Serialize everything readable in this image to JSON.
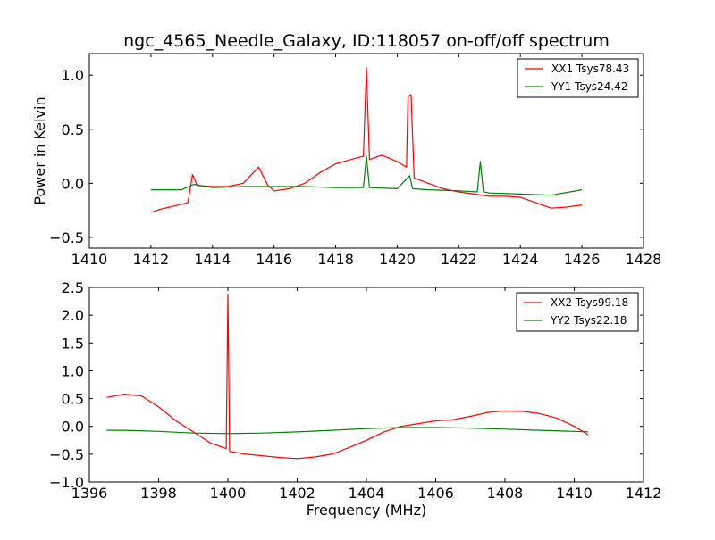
{
  "figure": {
    "title": "ngc_4565_Needle_Galaxy, ID:118057 on-off/off spectrum"
  },
  "chart_data": [
    {
      "type": "line",
      "title": "ngc_4565_Needle_Galaxy, ID:118057 on-off/off spectrum",
      "xlabel": "",
      "ylabel": "Power in Kelvin",
      "xlim": [
        1410,
        1428
      ],
      "ylim": [
        -0.6,
        1.2
      ],
      "xticks": [
        1410,
        1412,
        1414,
        1416,
        1418,
        1420,
        1422,
        1424,
        1426,
        1428
      ],
      "xtick_labels": [
        "1410",
        "1412",
        "1414",
        "1416",
        "1418",
        "1420",
        "1422",
        "1424",
        "1426",
        "1428"
      ],
      "yticks": [
        -0.5,
        0.0,
        0.5,
        1.0
      ],
      "ytick_labels": [
        "−0.5",
        "0.0",
        "0.5",
        "1.0"
      ],
      "grid": false,
      "legend_position": "top-right",
      "series": [
        {
          "name": "XX1 Tsys78.43",
          "color": "#ff0000",
          "x": [
            1412.0,
            1412.3,
            1412.6,
            1412.9,
            1413.2,
            1413.35,
            1413.5,
            1414.0,
            1414.5,
            1415.0,
            1415.5,
            1415.8,
            1416.0,
            1416.5,
            1417.0,
            1417.5,
            1418.0,
            1418.5,
            1418.9,
            1419.0,
            1419.1,
            1419.5,
            1420.0,
            1420.3,
            1420.35,
            1420.45,
            1420.55,
            1421.0,
            1421.5,
            1422.0,
            1422.5,
            1423.0,
            1423.5,
            1424.0,
            1424.5,
            1425.0,
            1425.5,
            1426.0
          ],
          "y": [
            -0.27,
            -0.24,
            -0.22,
            -0.2,
            -0.18,
            0.08,
            -0.02,
            -0.03,
            -0.03,
            0.0,
            0.15,
            -0.02,
            -0.07,
            -0.05,
            0.0,
            0.1,
            0.18,
            0.22,
            0.25,
            1.07,
            0.22,
            0.26,
            0.2,
            0.15,
            0.8,
            0.82,
            0.05,
            0.0,
            -0.05,
            -0.08,
            -0.1,
            -0.12,
            -0.12,
            -0.13,
            -0.18,
            -0.23,
            -0.22,
            -0.2
          ]
        },
        {
          "name": "YY1 Tsys24.42",
          "color": "#008000",
          "x": [
            1412.0,
            1413.0,
            1413.4,
            1414.0,
            1415.0,
            1416.0,
            1417.0,
            1418.0,
            1418.9,
            1419.0,
            1419.1,
            1420.0,
            1420.4,
            1420.5,
            1421.0,
            1422.0,
            1422.6,
            1422.7,
            1422.8,
            1423.0,
            1424.0,
            1425.0,
            1426.0
          ],
          "y": [
            -0.06,
            -0.06,
            -0.01,
            -0.04,
            -0.03,
            -0.03,
            -0.03,
            -0.04,
            -0.04,
            0.25,
            -0.04,
            -0.05,
            0.07,
            -0.05,
            -0.06,
            -0.07,
            -0.08,
            0.2,
            -0.08,
            -0.09,
            -0.1,
            -0.11,
            -0.06
          ]
        }
      ]
    },
    {
      "type": "line",
      "title": "",
      "xlabel": "Frequency (MHz)",
      "ylabel": "",
      "xlim": [
        1396,
        1412
      ],
      "ylim": [
        -1.0,
        2.5
      ],
      "xticks": [
        1396,
        1398,
        1400,
        1402,
        1404,
        1406,
        1408,
        1410,
        1412
      ],
      "xtick_labels": [
        "1396",
        "1398",
        "1400",
        "1402",
        "1404",
        "1406",
        "1408",
        "1410",
        "1412"
      ],
      "yticks": [
        -1.0,
        -0.5,
        0.0,
        0.5,
        1.0,
        1.5,
        2.0,
        2.5
      ],
      "ytick_labels": [
        "−1.0",
        "−0.5",
        "0.0",
        "0.5",
        "1.0",
        "1.5",
        "2.0",
        "2.5"
      ],
      "grid": false,
      "legend_position": "top-right",
      "series": [
        {
          "name": "XX2 Tsys99.18",
          "color": "#ff0000",
          "x": [
            1396.5,
            1397.0,
            1397.5,
            1398.0,
            1398.5,
            1399.0,
            1399.5,
            1399.95,
            1400.0,
            1400.05,
            1400.5,
            1401.0,
            1401.5,
            1402.0,
            1402.5,
            1403.0,
            1403.5,
            1404.0,
            1404.5,
            1405.0,
            1405.5,
            1406.0,
            1406.5,
            1407.0,
            1407.5,
            1408.0,
            1408.5,
            1409.0,
            1409.5,
            1410.0,
            1410.4
          ],
          "y": [
            0.52,
            0.58,
            0.55,
            0.35,
            0.1,
            -0.1,
            -0.3,
            -0.4,
            2.38,
            -0.45,
            -0.5,
            -0.53,
            -0.56,
            -0.58,
            -0.55,
            -0.5,
            -0.38,
            -0.25,
            -0.1,
            0.0,
            0.05,
            0.1,
            0.12,
            0.18,
            0.25,
            0.28,
            0.27,
            0.23,
            0.15,
            0.0,
            -0.15
          ]
        },
        {
          "name": "YY2 Tsys22.18",
          "color": "#008000",
          "x": [
            1396.5,
            1397.0,
            1398.0,
            1399.0,
            1400.0,
            1401.0,
            1402.0,
            1403.0,
            1404.0,
            1405.0,
            1406.0,
            1407.0,
            1408.0,
            1409.0,
            1410.0,
            1410.4
          ],
          "y": [
            -0.07,
            -0.07,
            -0.09,
            -0.12,
            -0.13,
            -0.12,
            -0.1,
            -0.07,
            -0.04,
            -0.02,
            -0.02,
            -0.03,
            -0.05,
            -0.07,
            -0.09,
            -0.1
          ]
        }
      ]
    }
  ]
}
